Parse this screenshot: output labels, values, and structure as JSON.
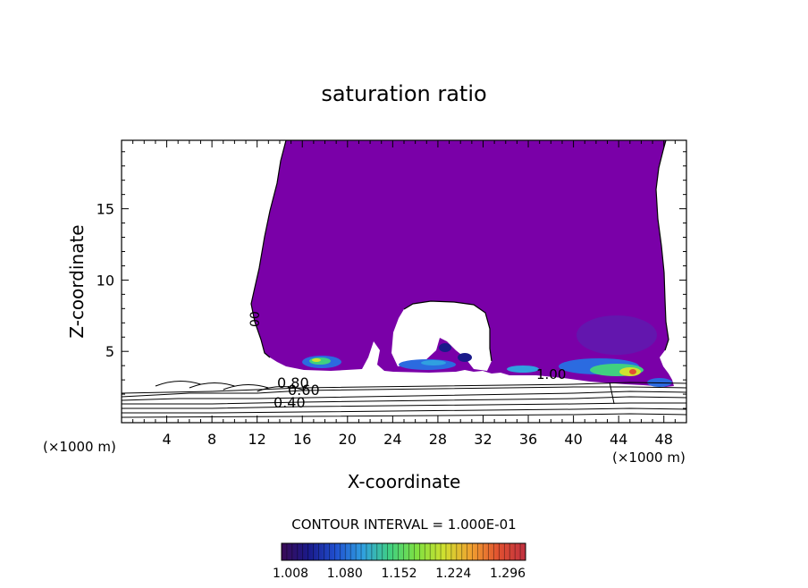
{
  "chart_data": {
    "type": "heatmap",
    "title": "saturation ratio",
    "xlabel": "X-coordinate",
    "ylabel": "Z-coordinate",
    "x_unit_left": "(×1000 m)",
    "x_unit_right": "(×1000 m)",
    "xlim": [
      0,
      50
    ],
    "ylim": [
      0,
      19.8
    ],
    "x_ticks": [
      4,
      8,
      12,
      16,
      20,
      24,
      28,
      32,
      36,
      40,
      44,
      48
    ],
    "y_ticks": [
      5,
      10,
      15
    ],
    "contour_interval_text": "CONTOUR INTERVAL = 1.000E-01",
    "contour_labels": [
      "0.80",
      "0.60",
      "0.40",
      "1.00",
      "00"
    ],
    "colorbar": {
      "tick_labels": [
        "1.008",
        "1.080",
        "1.152",
        "1.224",
        "1.296"
      ],
      "colors": [
        "#3a0a55",
        "#1a1a8a",
        "#2050d0",
        "#30a0e0",
        "#40d080",
        "#80e040",
        "#d0e030",
        "#f0a030",
        "#e05030",
        "#c03040"
      ]
    },
    "fill_color": "#7a00a8",
    "line_color": "#000000"
  }
}
